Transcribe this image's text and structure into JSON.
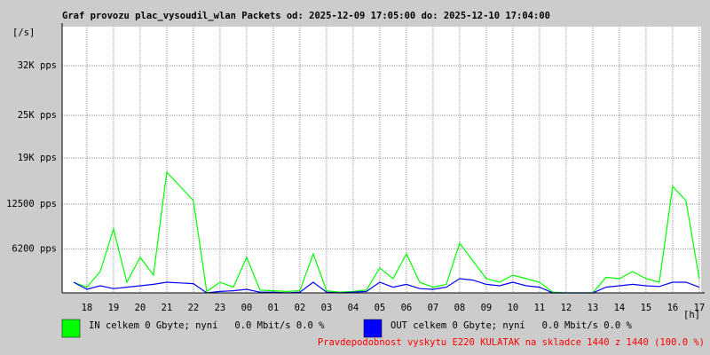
{
  "chart_data": {
    "type": "line",
    "title": "Graf provozu plac_vysoudil_wlan Packets od: 2025-12-09 17:05:00 do: 2025-12-10 17:04:00",
    "y_label": "[/s]",
    "x_label": "[h]",
    "x": [
      17.5,
      18,
      18.5,
      19,
      19.5,
      20,
      20.5,
      21,
      21.5,
      22,
      22.5,
      23,
      23.5,
      24,
      24.5,
      25,
      25.5,
      26,
      26.5,
      27,
      27.5,
      28,
      28.5,
      29,
      29.5,
      30,
      30.5,
      31,
      31.5,
      32,
      32.5,
      33,
      33.5,
      34,
      34.5,
      35,
      35.5,
      36,
      36.5,
      37,
      37.5,
      38,
      38.5,
      39,
      39.5,
      40,
      40.5,
      41
    ],
    "series": [
      {
        "name": "IN celkem 0 Gbyte; nyní   0.0 Mbit/s 0.0 %",
        "color": "#00ff00",
        "values": [
          1500,
          800,
          3000,
          9000,
          1500,
          5000,
          2500,
          17000,
          15000,
          13000,
          200,
          1500,
          800,
          5000,
          400,
          300,
          200,
          300,
          5500,
          300,
          100,
          200,
          400,
          3500,
          2000,
          5500,
          1500,
          800,
          1200,
          7000,
          4500,
          2000,
          1500,
          2500,
          2000,
          1500,
          100,
          0,
          0,
          0,
          2200,
          2000,
          3000,
          2000,
          1500,
          15000,
          13000,
          2000
        ]
      },
      {
        "name": "OUT celkem 0 Gbyte; nyní   0.0 Mbit/s 0.0 %",
        "color": "#0000ff",
        "values": [
          1500,
          500,
          1000,
          600,
          800,
          1000,
          1200,
          1500,
          1400,
          1300,
          0,
          200,
          300,
          500,
          100,
          100,
          0,
          100,
          1500,
          100,
          0,
          100,
          200,
          1500,
          800,
          1200,
          600,
          500,
          800,
          2000,
          1800,
          1200,
          1000,
          1500,
          1000,
          800,
          0,
          0,
          0,
          0,
          800,
          1000,
          1200,
          1000,
          900,
          1500,
          1500,
          800
        ]
      }
    ],
    "ylim": [
      0,
      37500
    ],
    "yticks": [
      {
        "value": 6200,
        "label": "6200 pps"
      },
      {
        "value": 12500,
        "label": "12500 pps"
      },
      {
        "value": 19000,
        "label": "19K pps"
      },
      {
        "value": 25000,
        "label": "25K pps"
      },
      {
        "value": 32000,
        "label": "32K pps"
      }
    ],
    "xlim": [
      17.07,
      41.07
    ],
    "xticks": [
      18,
      19,
      20,
      21,
      22,
      23,
      {
        "value": 24,
        "label": "00"
      },
      {
        "value": 25,
        "label": "01"
      },
      {
        "value": 26,
        "label": "02"
      },
      {
        "value": 27,
        "label": "03"
      },
      {
        "value": 28,
        "label": "04"
      },
      {
        "value": 29,
        "label": "05"
      },
      {
        "value": 30,
        "label": "06"
      },
      {
        "value": 31,
        "label": "07"
      },
      {
        "value": 32,
        "label": "08"
      },
      {
        "value": 33,
        "label": "09"
      },
      {
        "value": 34,
        "label": "10"
      },
      {
        "value": 35,
        "label": "11"
      },
      {
        "value": 36,
        "label": "12"
      },
      {
        "value": 37,
        "label": "13"
      },
      {
        "value": 38,
        "label": "14"
      },
      {
        "value": 39,
        "label": "15"
      },
      {
        "value": 40,
        "label": "16"
      },
      {
        "value": 41,
        "label": "17"
      }
    ],
    "grid": true,
    "footnote": "Pravdepodobnost vyskytu E220 KULATAK na skladce 1440 z 1440 (100.0 %)"
  }
}
